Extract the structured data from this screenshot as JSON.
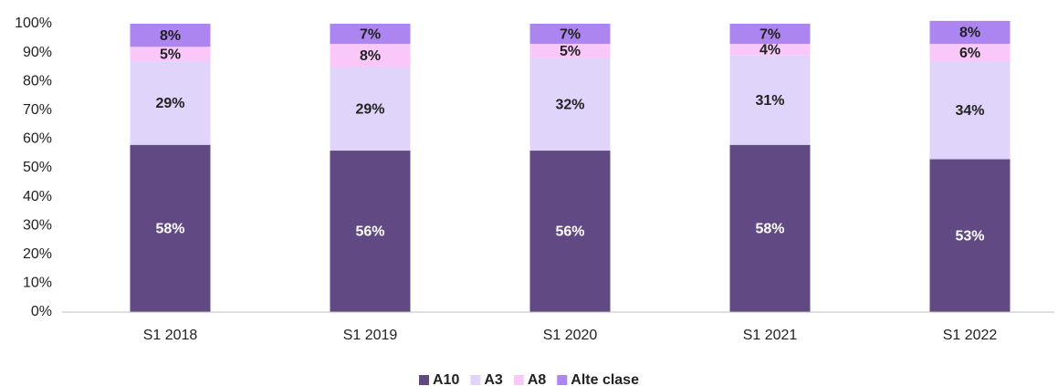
{
  "chart_data": {
    "type": "stacked_bar",
    "categories": [
      "S1 2018",
      "S1 2019",
      "S1 2020",
      "S1 2021",
      "S1 2022"
    ],
    "series": [
      {
        "name": "A10",
        "color": "#614a84",
        "values": [
          58,
          56,
          56,
          58,
          53
        ],
        "value_labels": [
          "58%",
          "56%",
          "56%",
          "58%",
          "53%"
        ]
      },
      {
        "name": "A3",
        "color": "#e0d4fa",
        "values": [
          29,
          29,
          32,
          31,
          34
        ],
        "value_labels": [
          "29%",
          "29%",
          "32%",
          "31%",
          "34%"
        ]
      },
      {
        "name": "A8",
        "color": "#f9c8f8",
        "values": [
          5,
          8,
          5,
          4,
          6
        ],
        "value_labels": [
          "5%",
          "8%",
          "5%",
          "4%",
          "6%"
        ]
      },
      {
        "name": "Alte clase",
        "color": "#ad85f0",
        "values": [
          8,
          7,
          7,
          7,
          8
        ],
        "value_labels": [
          "8%",
          "7%",
          "7%",
          "7%",
          "8%"
        ]
      }
    ],
    "ylim": [
      0,
      100
    ],
    "yticks": [
      {
        "value": 0,
        "label": "0%"
      },
      {
        "value": 10,
        "label": "10%"
      },
      {
        "value": 20,
        "label": "20%"
      },
      {
        "value": 30,
        "label": "30%"
      },
      {
        "value": 40,
        "label": "40%"
      },
      {
        "value": 50,
        "label": "50%"
      },
      {
        "value": 60,
        "label": "60%"
      },
      {
        "value": 70,
        "label": "70%"
      },
      {
        "value": 80,
        "label": "80%"
      },
      {
        "value": 90,
        "label": "90%"
      },
      {
        "value": 100,
        "label": "100%"
      }
    ],
    "legend": "bottom"
  }
}
